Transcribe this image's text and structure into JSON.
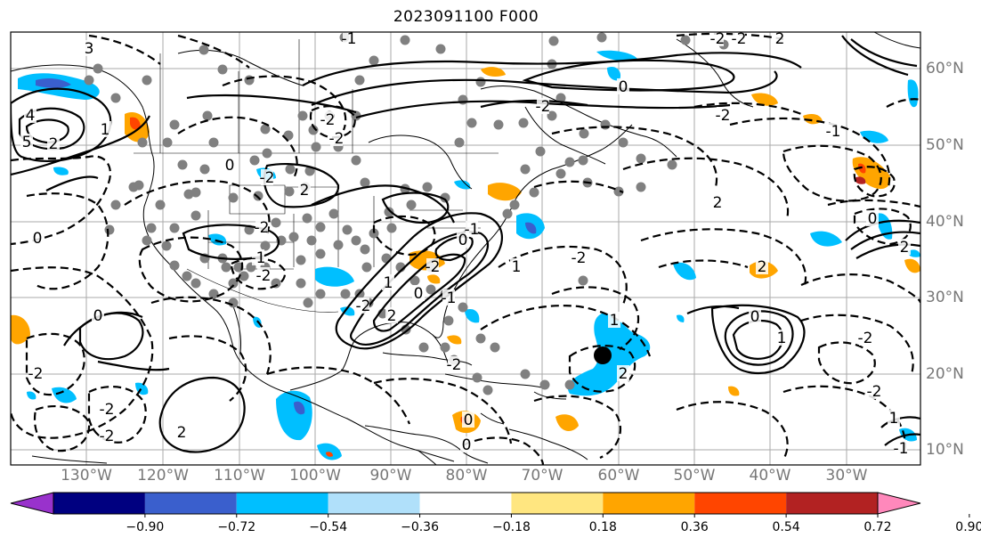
{
  "title": "2023091100 F000",
  "longitude_labels": [
    "130°W",
    "120°W",
    "110°W",
    "100°W",
    "90°W",
    "80°W",
    "70°W",
    "60°W",
    "50°W",
    "40°W",
    "30°W"
  ],
  "latitude_labels": [
    "60°N",
    "50°N",
    "40°N",
    "30°N",
    "20°N",
    "10°N"
  ],
  "colorbar": {
    "tick_labels": [
      "−0.90",
      "−0.72",
      "−0.54",
      "−0.36",
      "−0.18",
      "0.18",
      "0.36",
      "0.54",
      "0.72",
      "0.90"
    ],
    "colors": [
      "#9932cc",
      "#000080",
      "#3a5fcd",
      "#00bfff",
      "#b0e0fa",
      "#ffffff",
      "#ffe680",
      "#ffa500",
      "#ff4500",
      "#b22222",
      "#ff88bb"
    ],
    "extend": "both"
  },
  "contour_labels": [
    "3",
    "5",
    "4",
    "1",
    "2",
    "-2",
    "0",
    "-1",
    "-2",
    "-2",
    "2",
    "-2",
    "-1",
    "0",
    "-2",
    "-2",
    "2",
    "-2",
    "0",
    "-1",
    "-2",
    "0",
    "-2",
    "-1",
    "2",
    "1",
    "-2",
    "0",
    "-2",
    "1",
    "-2",
    "1",
    "2",
    "-2",
    "0",
    "-2",
    "-1",
    "0",
    "2",
    "-2",
    "-2",
    "1",
    "-1",
    "0",
    "1",
    "2",
    "2",
    "0",
    "0",
    "-2",
    "-2",
    "2"
  ],
  "marker": {
    "label": "storm-center"
  },
  "colors": {
    "contour": "#000000",
    "grid": "#aaaaaa",
    "station_dot": "#808080",
    "coast": "#000000"
  }
}
